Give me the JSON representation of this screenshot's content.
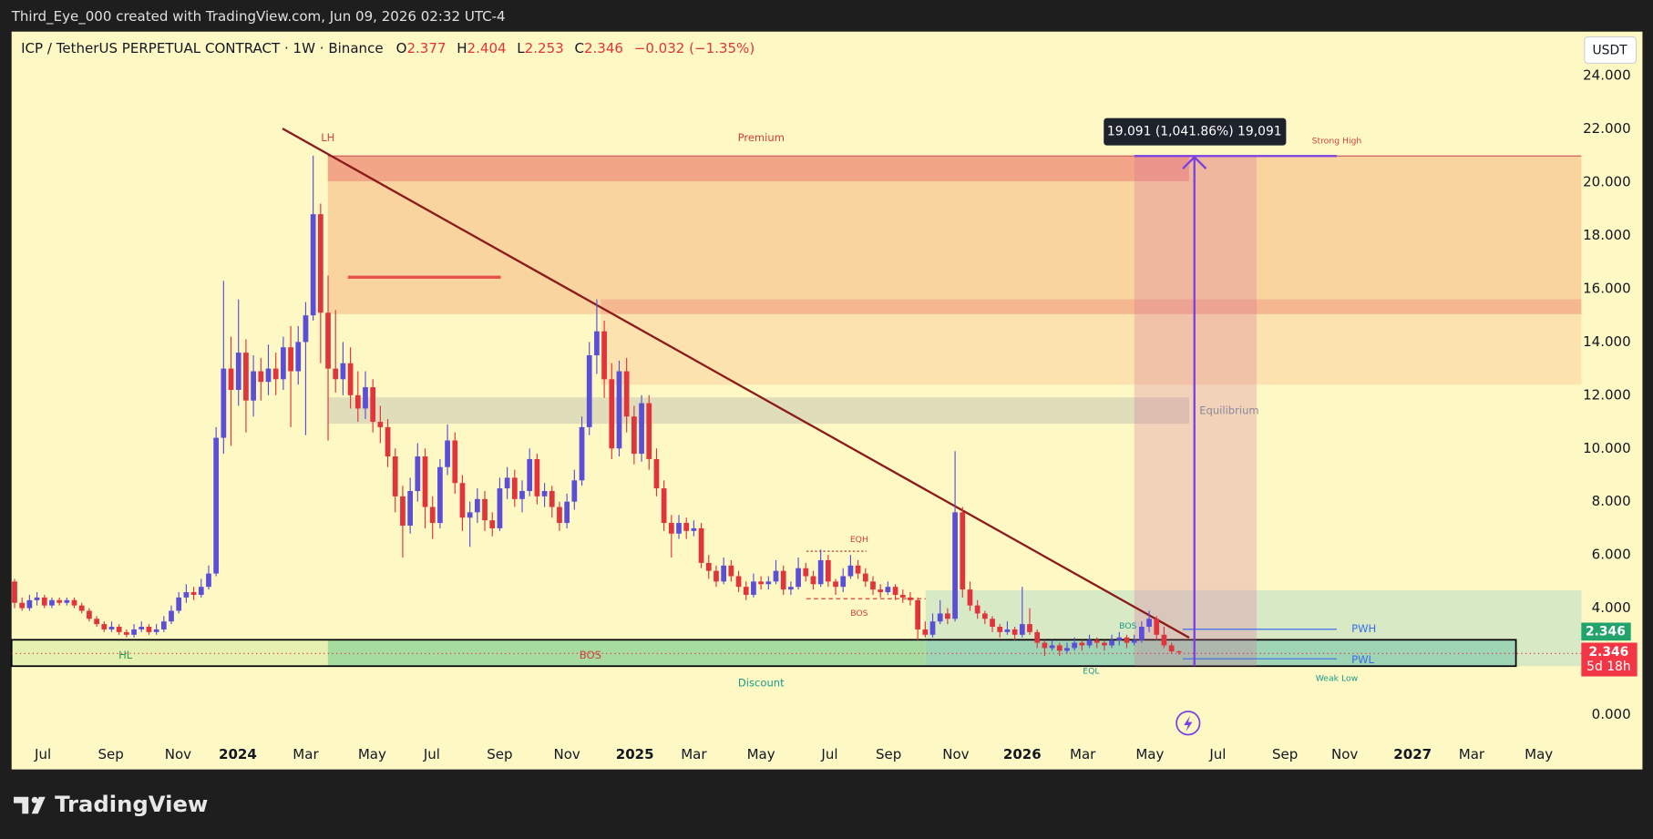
{
  "header": "Third_Eye_000 created with TradingView.com, Jun 09, 2026 02:32 UTC-4",
  "footer_logo": "TradingView",
  "chart_data": {
    "type": "candlestick",
    "title": "ICP / TetherUS PERPETUAL CONTRACT · 1W · Binance",
    "ohlc_labels": [
      "O",
      "H",
      "L",
      "C"
    ],
    "change": "−0.032 (−1.35%)",
    "currency": "USDT",
    "countdown": "5d 18h",
    "up_color": "#5b4fd8",
    "down_color": "#e0353c",
    "grid": false,
    "candles": [
      [
        5.0,
        5.1,
        4.0,
        4.2
      ],
      [
        4.2,
        4.4,
        3.9,
        4.0
      ],
      [
        4.0,
        4.5,
        3.9,
        4.3
      ],
      [
        4.3,
        4.6,
        4.1,
        4.4
      ],
      [
        4.4,
        4.5,
        4.0,
        4.1
      ],
      [
        4.1,
        4.4,
        4.0,
        4.3
      ],
      [
        4.3,
        4.4,
        4.1,
        4.2
      ],
      [
        4.2,
        4.4,
        4.1,
        4.3
      ],
      [
        4.3,
        4.4,
        4.0,
        4.1
      ],
      [
        4.1,
        4.2,
        3.8,
        3.9
      ],
      [
        3.9,
        4.0,
        3.5,
        3.6
      ],
      [
        3.6,
        3.7,
        3.3,
        3.4
      ],
      [
        3.4,
        3.5,
        3.1,
        3.2
      ],
      [
        3.2,
        3.5,
        3.1,
        3.3
      ],
      [
        3.3,
        3.4,
        3.0,
        3.1
      ],
      [
        3.1,
        3.2,
        2.9,
        3.0
      ],
      [
        3.0,
        3.4,
        2.9,
        3.2
      ],
      [
        3.2,
        3.5,
        3.1,
        3.3
      ],
      [
        3.3,
        3.4,
        3.0,
        3.1
      ],
      [
        3.1,
        3.4,
        3.0,
        3.2
      ],
      [
        3.2,
        3.7,
        3.1,
        3.5
      ],
      [
        3.5,
        4.1,
        3.4,
        3.9
      ],
      [
        3.9,
        4.6,
        3.8,
        4.4
      ],
      [
        4.4,
        4.9,
        4.2,
        4.6
      ],
      [
        4.6,
        4.8,
        4.3,
        4.5
      ],
      [
        4.5,
        5.1,
        4.4,
        4.8
      ],
      [
        4.8,
        5.6,
        4.7,
        5.3
      ],
      [
        5.3,
        10.8,
        5.2,
        10.4
      ],
      [
        10.4,
        16.3,
        9.8,
        13.0
      ],
      [
        13.0,
        14.2,
        10.1,
        12.2
      ],
      [
        12.2,
        15.6,
        11.6,
        13.6
      ],
      [
        13.6,
        14.1,
        10.6,
        11.8
      ],
      [
        11.8,
        13.5,
        11.2,
        12.9
      ],
      [
        12.9,
        13.4,
        11.8,
        12.5
      ],
      [
        12.5,
        13.9,
        12.0,
        13.0
      ],
      [
        13.0,
        13.6,
        12.0,
        12.6
      ],
      [
        12.6,
        14.2,
        12.2,
        13.8
      ],
      [
        13.8,
        14.6,
        10.8,
        12.9
      ],
      [
        12.9,
        14.6,
        12.4,
        14.0
      ],
      [
        14.0,
        15.5,
        10.5,
        15.0
      ],
      [
        15.0,
        21.0,
        14.8,
        18.8
      ],
      [
        18.8,
        19.2,
        13.2,
        15.1
      ],
      [
        15.1,
        16.5,
        10.3,
        13.0
      ],
      [
        13.0,
        15.2,
        12.1,
        12.6
      ],
      [
        12.6,
        14.0,
        12.0,
        13.2
      ],
      [
        13.2,
        13.8,
        11.5,
        12.0
      ],
      [
        12.0,
        12.9,
        11.0,
        11.5
      ],
      [
        11.5,
        12.9,
        11.1,
        12.3
      ],
      [
        12.3,
        12.6,
        10.6,
        11.0
      ],
      [
        11.0,
        11.6,
        10.2,
        10.8
      ],
      [
        10.8,
        11.1,
        9.3,
        9.7
      ],
      [
        9.7,
        10.0,
        7.6,
        8.2
      ],
      [
        8.2,
        8.6,
        5.9,
        7.1
      ],
      [
        7.1,
        8.9,
        6.8,
        8.4
      ],
      [
        8.4,
        10.2,
        8.0,
        9.7
      ],
      [
        9.7,
        10.0,
        7.0,
        7.8
      ],
      [
        7.8,
        8.2,
        6.6,
        7.2
      ],
      [
        7.2,
        9.6,
        7.0,
        9.3
      ],
      [
        9.3,
        10.9,
        9.0,
        10.3
      ],
      [
        10.3,
        10.6,
        8.3,
        8.7
      ],
      [
        8.7,
        9.0,
        6.9,
        7.4
      ],
      [
        7.4,
        8.0,
        6.3,
        7.6
      ],
      [
        7.6,
        8.5,
        7.2,
        8.1
      ],
      [
        8.1,
        8.4,
        6.9,
        7.3
      ],
      [
        7.3,
        7.6,
        6.7,
        7.0
      ],
      [
        7.0,
        8.9,
        6.9,
        8.5
      ],
      [
        8.5,
        9.3,
        8.1,
        8.9
      ],
      [
        8.9,
        9.2,
        7.8,
        8.1
      ],
      [
        8.1,
        8.8,
        7.6,
        8.4
      ],
      [
        8.4,
        10.0,
        8.2,
        9.6
      ],
      [
        9.6,
        9.8,
        7.9,
        8.2
      ],
      [
        8.2,
        8.7,
        7.8,
        8.4
      ],
      [
        8.4,
        8.6,
        7.4,
        7.8
      ],
      [
        7.8,
        8.0,
        6.9,
        7.2
      ],
      [
        7.2,
        8.3,
        7.0,
        8.0
      ],
      [
        8.0,
        9.2,
        7.7,
        8.8
      ],
      [
        8.8,
        11.2,
        8.6,
        10.8
      ],
      [
        10.8,
        14.0,
        10.5,
        13.5
      ],
      [
        13.5,
        15.6,
        12.8,
        14.4
      ],
      [
        14.4,
        14.8,
        11.9,
        12.6
      ],
      [
        12.6,
        13.2,
        9.6,
        10.0
      ],
      [
        10.0,
        13.3,
        9.7,
        12.9
      ],
      [
        12.9,
        13.4,
        10.6,
        11.2
      ],
      [
        11.2,
        11.6,
        9.4,
        9.8
      ],
      [
        9.8,
        12.0,
        9.5,
        11.7
      ],
      [
        11.7,
        12.0,
        9.2,
        9.6
      ],
      [
        9.6,
        10.0,
        8.2,
        8.5
      ],
      [
        8.5,
        8.8,
        6.9,
        7.2
      ],
      [
        7.2,
        7.5,
        5.9,
        6.8
      ],
      [
        6.8,
        7.5,
        6.6,
        7.2
      ],
      [
        7.2,
        7.4,
        6.6,
        6.9
      ],
      [
        6.9,
        7.3,
        6.7,
        7.0
      ],
      [
        7.0,
        7.2,
        5.5,
        5.7
      ],
      [
        5.7,
        6.0,
        5.1,
        5.4
      ],
      [
        5.4,
        5.6,
        4.8,
        5.0
      ],
      [
        5.0,
        5.9,
        4.9,
        5.6
      ],
      [
        5.6,
        5.8,
        5.0,
        5.2
      ],
      [
        5.2,
        5.4,
        4.6,
        4.8
      ],
      [
        4.8,
        5.0,
        4.3,
        4.5
      ],
      [
        4.5,
        5.3,
        4.4,
        5.0
      ],
      [
        5.0,
        5.2,
        4.7,
        4.9
      ],
      [
        4.9,
        5.2,
        4.7,
        5.0
      ],
      [
        5.0,
        5.8,
        4.9,
        5.4
      ],
      [
        5.4,
        5.6,
        4.5,
        4.7
      ],
      [
        4.7,
        5.0,
        4.5,
        4.8
      ],
      [
        4.8,
        5.9,
        4.7,
        5.5
      ],
      [
        5.5,
        5.7,
        5.0,
        5.2
      ],
      [
        5.2,
        5.4,
        4.7,
        4.9
      ],
      [
        4.9,
        6.2,
        4.8,
        5.8
      ],
      [
        5.8,
        6.0,
        4.8,
        5.0
      ],
      [
        5.0,
        5.1,
        4.5,
        4.8
      ],
      [
        4.8,
        5.5,
        4.6,
        5.2
      ],
      [
        5.2,
        6.0,
        5.1,
        5.6
      ],
      [
        5.6,
        5.8,
        5.1,
        5.3
      ],
      [
        5.3,
        5.5,
        4.8,
        5.0
      ],
      [
        5.0,
        5.2,
        4.5,
        4.7
      ],
      [
        4.7,
        4.9,
        4.4,
        4.6
      ],
      [
        4.6,
        5.0,
        4.5,
        4.8
      ],
      [
        4.8,
        4.9,
        4.3,
        4.5
      ],
      [
        4.5,
        4.7,
        4.2,
        4.4
      ],
      [
        4.4,
        4.6,
        4.1,
        4.3
      ],
      [
        4.3,
        4.4,
        2.8,
        3.2
      ],
      [
        3.2,
        3.5,
        2.9,
        3.0
      ],
      [
        3.0,
        3.8,
        2.9,
        3.5
      ],
      [
        3.5,
        4.3,
        3.4,
        3.8
      ],
      [
        3.8,
        4.0,
        3.4,
        3.6
      ],
      [
        3.6,
        9.9,
        3.5,
        7.6
      ],
      [
        7.6,
        7.8,
        4.4,
        4.7
      ],
      [
        4.7,
        5.0,
        3.9,
        4.1
      ],
      [
        4.1,
        4.3,
        3.6,
        3.8
      ],
      [
        3.8,
        3.9,
        3.4,
        3.6
      ],
      [
        3.6,
        3.7,
        3.1,
        3.3
      ],
      [
        3.3,
        3.4,
        2.9,
        3.1
      ],
      [
        3.1,
        3.5,
        3.0,
        3.2
      ],
      [
        3.2,
        3.3,
        2.8,
        3.0
      ],
      [
        3.0,
        4.8,
        2.9,
        3.4
      ],
      [
        3.4,
        4.0,
        3.0,
        3.1
      ],
      [
        3.1,
        3.2,
        2.5,
        2.7
      ],
      [
        2.7,
        2.8,
        2.2,
        2.5
      ],
      [
        2.5,
        2.8,
        2.4,
        2.6
      ],
      [
        2.6,
        2.7,
        2.2,
        2.4
      ],
      [
        2.4,
        2.7,
        2.3,
        2.5
      ],
      [
        2.5,
        2.9,
        2.4,
        2.7
      ],
      [
        2.7,
        2.8,
        2.4,
        2.6
      ],
      [
        2.6,
        3.0,
        2.5,
        2.8
      ],
      [
        2.8,
        2.9,
        2.5,
        2.7
      ],
      [
        2.7,
        2.8,
        2.4,
        2.6
      ],
      [
        2.6,
        3.0,
        2.5,
        2.8
      ],
      [
        2.8,
        3.1,
        2.6,
        2.9
      ],
      [
        2.9,
        3.0,
        2.5,
        2.7
      ],
      [
        2.7,
        3.0,
        2.6,
        2.8
      ],
      [
        2.8,
        3.5,
        2.7,
        3.3
      ],
      [
        3.3,
        3.9,
        3.1,
        3.6
      ],
      [
        3.6,
        3.7,
        2.8,
        3.0
      ],
      [
        3.0,
        3.3,
        2.5,
        2.6
      ],
      [
        2.6,
        2.7,
        2.3,
        2.377
      ],
      [
        2.377,
        2.404,
        2.253,
        2.346
      ]
    ],
    "xlim": [
      -0.4,
      209.9
    ],
    "xticks": [
      {
        "value": 3.8,
        "label": "Jul"
      },
      {
        "value": 12.9,
        "label": "Sep"
      },
      {
        "value": 21.9,
        "label": "Nov"
      },
      {
        "value": 29.9,
        "label": "2024"
      },
      {
        "value": 39.0,
        "label": "Mar"
      },
      {
        "value": 47.9,
        "label": "May"
      },
      {
        "value": 55.9,
        "label": "Jul"
      },
      {
        "value": 65.0,
        "label": "Sep"
      },
      {
        "value": 74.0,
        "label": "Nov"
      },
      {
        "value": 83.1,
        "label": "2025"
      },
      {
        "value": 91.0,
        "label": "Mar"
      },
      {
        "value": 100.0,
        "label": "May"
      },
      {
        "value": 109.2,
        "label": "Jul"
      },
      {
        "value": 117.1,
        "label": "Sep"
      },
      {
        "value": 126.1,
        "label": "Nov"
      },
      {
        "value": 135.0,
        "label": "2026"
      },
      {
        "value": 143.1,
        "label": "Mar"
      },
      {
        "value": 152.1,
        "label": "May"
      },
      {
        "value": 161.2,
        "label": "Jul"
      },
      {
        "value": 170.2,
        "label": "Sep"
      },
      {
        "value": 178.2,
        "label": "Nov"
      },
      {
        "value": 187.3,
        "label": "2027"
      },
      {
        "value": 195.2,
        "label": "Mar"
      },
      {
        "value": 204.2,
        "label": "May"
      }
    ],
    "ylim": [
      -2.06,
      25.66
    ],
    "yticks": [
      {
        "value": 0,
        "label": "0.000"
      },
      {
        "value": 4,
        "label": "4.000"
      },
      {
        "value": 6,
        "label": "6.000"
      },
      {
        "value": 8,
        "label": "8.000"
      },
      {
        "value": 10,
        "label": "10.000"
      },
      {
        "value": 12,
        "label": "12.000"
      },
      {
        "value": 14,
        "label": "14.000"
      },
      {
        "value": 16,
        "label": "16.000"
      },
      {
        "value": 18,
        "label": "18.000"
      },
      {
        "value": 20,
        "label": "20.000"
      },
      {
        "value": 22,
        "label": "22.000"
      },
      {
        "value": 24,
        "label": "24.000"
      }
    ],
    "annotations": [
      "LH",
      "Premium",
      "Strong High",
      "Equilibrium",
      "EQH",
      "BOS",
      "BOS",
      "PWH",
      "PWL",
      "EQL",
      "HL",
      "BOS",
      "Discount",
      "Weak Low",
      "19.091 (1,041.86%) 19,091"
    ]
  }
}
